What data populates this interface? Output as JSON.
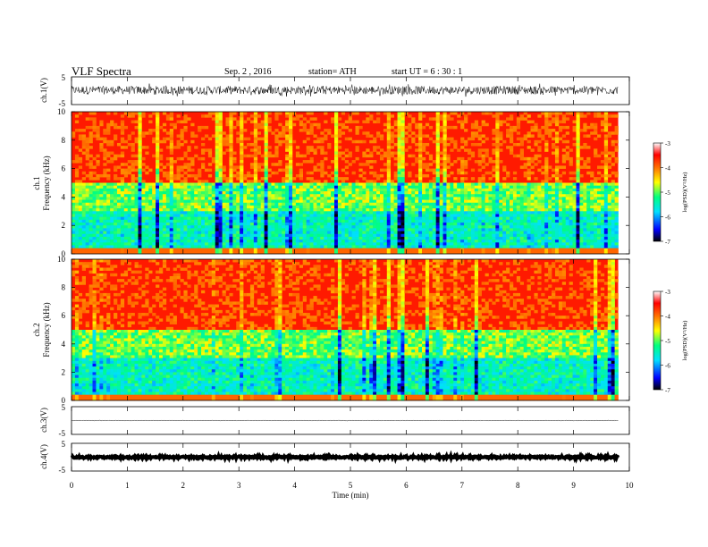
{
  "header": {
    "title": "VLF  Spectra",
    "date": "Sep. 2  , 2016",
    "station": "station= ATH",
    "start": "start  UT  =   6  : 30 : 1"
  },
  "colors": {
    "spectrogram_scale": [
      "#000000",
      "#0000ff",
      "#00e0ff",
      "#00ff7f",
      "#ffff00",
      "#ff7000",
      "#ff0000",
      "#ffffff"
    ]
  },
  "chart_data": [
    {
      "type": "line",
      "name": "channel-1-waveform",
      "ylabel": "ch.1(V)",
      "ylim": [
        -5,
        5
      ],
      "yticks": [
        "5",
        "-5"
      ],
      "xlim": [
        0,
        10
      ],
      "description_level": "noise around 0 V spanning roughly -1.5 to 1.5 V",
      "trace_mean": 0.2,
      "trace_amplitude": 1.5
    },
    {
      "type": "heatmap",
      "name": "channel-1-spectrogram",
      "ylabel": "ch.1\nFrequency (kHz)",
      "ylim": [
        0,
        10
      ],
      "yticks": [
        "0",
        "2",
        "4",
        "6",
        "8",
        "10"
      ],
      "xlim": [
        0,
        9.8
      ],
      "colorbar": {
        "label": "log(PSD)(V²/Hz)",
        "range": [
          -7,
          -3
        ],
        "ticks": [
          "-3",
          "-4",
          "-5",
          "-6",
          "-7"
        ]
      }
    },
    {
      "type": "heatmap",
      "name": "channel-2-spectrogram",
      "ylabel": "ch.2\nFrequency (kHz)",
      "ylim": [
        0,
        10
      ],
      "yticks": [
        "0",
        "2",
        "4",
        "6",
        "8",
        "10"
      ],
      "xlim": [
        0,
        9.8
      ],
      "colorbar": {
        "label": "log(PSD)(V²/Hz)",
        "range": [
          -7,
          -3
        ],
        "ticks": [
          "-3",
          "-4",
          "-5",
          "-6",
          "-7"
        ]
      }
    },
    {
      "type": "line",
      "name": "channel-3-waveform",
      "ylabel": "ch.3(V)",
      "ylim": [
        -5,
        5
      ],
      "yticks": [
        "5",
        "-5"
      ],
      "trace_mean": 0,
      "trace_amplitude": 0.1
    },
    {
      "type": "line",
      "name": "channel-4-waveform",
      "ylabel": "ch.4(V)",
      "ylim": [
        -5,
        5
      ],
      "yticks": [
        "5",
        "-5"
      ],
      "trace_mean": 0,
      "trace_amplitude": 0.3
    }
  ],
  "xaxis": {
    "label": "Time  (min)",
    "ticks": [
      "0",
      "1",
      "2",
      "3",
      "4",
      "5",
      "6",
      "7",
      "8",
      "9",
      "10"
    ],
    "range": [
      0,
      10
    ]
  }
}
